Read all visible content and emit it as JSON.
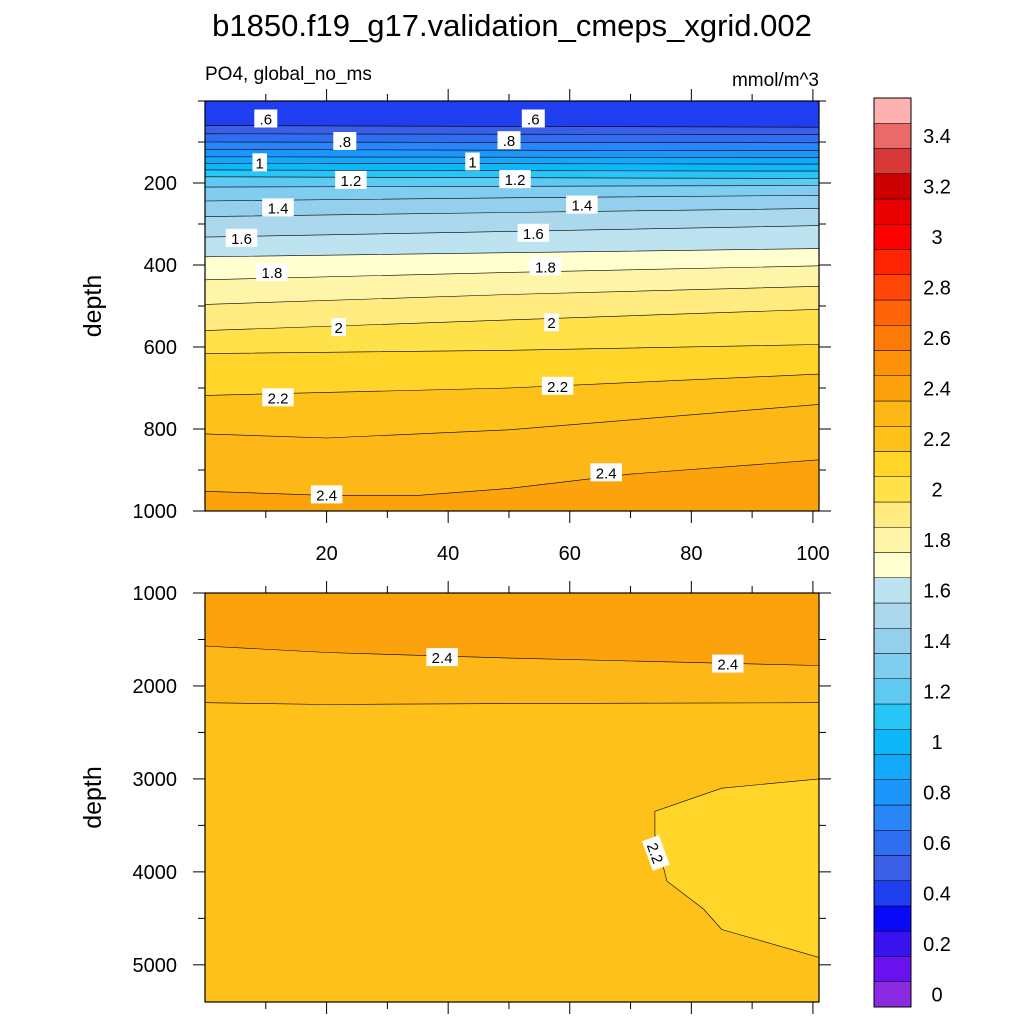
{
  "title": "b1850.f19_g17.validation_cmeps_xgrid.002",
  "subtitle_left": "PO4, global_no_ms",
  "subtitle_right": "mmol/m^3",
  "colorbar": {
    "levels": [
      0,
      0.1,
      0.2,
      0.3,
      0.4,
      0.5,
      0.6,
      0.7,
      0.8,
      0.9,
      1.0,
      1.1,
      1.2,
      1.3,
      1.4,
      1.5,
      1.6,
      1.7,
      1.8,
      1.9,
      2.0,
      2.1,
      2.2,
      2.3,
      2.4,
      2.5,
      2.6,
      2.7,
      2.8,
      2.9,
      3.0,
      3.1,
      3.2,
      3.3,
      3.4,
      3.5
    ],
    "labels": [
      "0",
      "0.2",
      "0.4",
      "0.6",
      "0.8",
      "1",
      "1.2",
      "1.4",
      "1.6",
      "1.8",
      "2",
      "2.2",
      "2.4",
      "2.6",
      "2.8",
      "3",
      "3.2",
      "3.4"
    ],
    "colors": [
      "#8a2be2",
      "#6a12ee",
      "#3a12f0",
      "#0a08f8",
      "#1e3ef0",
      "#3a5ee6",
      "#2f6ef0",
      "#2a86f8",
      "#1d96fb",
      "#14a8fb",
      "#0eb8f8",
      "#28c6f6",
      "#5ecaf2",
      "#80cdf0",
      "#94d0ee",
      "#acd8ee",
      "#bde3f0",
      "#ffffd0",
      "#fff5a8",
      "#ffeb80",
      "#ffe14a",
      "#ffd52a",
      "#fec11a",
      "#fdb716",
      "#fca20c",
      "#fd920a",
      "#fd7a08",
      "#ff6408",
      "#ff4606",
      "#ff2404",
      "#ff0000",
      "#e80000",
      "#cc0000",
      "#d83838",
      "#ea6a6a",
      "#ffb0b0"
    ]
  },
  "chart_data": [
    {
      "type": "contour",
      "panel": "top",
      "xlabel": "",
      "ylabel": "depth",
      "xlim": [
        0,
        101
      ],
      "ylim": [
        1000,
        0
      ],
      "xticks": [
        20,
        40,
        60,
        80,
        100
      ],
      "yticks": [
        200,
        400,
        600,
        800,
        1000
      ],
      "contour_levels": [
        0.6,
        0.8,
        1.0,
        1.2,
        1.4,
        1.6,
        1.8,
        2.0,
        2.2,
        2.4
      ],
      "contour_lines": [
        {
          "level": 0.5,
          "x": [
            0,
            50,
            101
          ],
          "y": [
            60,
            62,
            64
          ]
        },
        {
          "level": 0.6,
          "x": [
            0,
            50,
            101
          ],
          "y": [
            80,
            81,
            82
          ]
        },
        {
          "level": 0.7,
          "x": [
            0,
            50,
            101
          ],
          "y": [
            100,
            101,
            102
          ]
        },
        {
          "level": 0.8,
          "x": [
            0,
            50,
            101
          ],
          "y": [
            118,
            120,
            121
          ]
        },
        {
          "level": 0.9,
          "x": [
            0,
            50,
            101
          ],
          "y": [
            136,
            137,
            138
          ]
        },
        {
          "level": 1.0,
          "x": [
            0,
            50,
            101
          ],
          "y": [
            152,
            153,
            154
          ]
        },
        {
          "level": 1.1,
          "x": [
            0,
            50,
            101
          ],
          "y": [
            168,
            170,
            171
          ]
        },
        {
          "level": 1.2,
          "x": [
            0,
            50,
            101
          ],
          "y": [
            185,
            187,
            189
          ]
        },
        {
          "level": 1.3,
          "x": [
            0,
            50,
            101
          ],
          "y": [
            210,
            208,
            206
          ]
        },
        {
          "level": 1.4,
          "x": [
            0,
            50,
            101
          ],
          "y": [
            244,
            236,
            230
          ]
        },
        {
          "level": 1.5,
          "x": [
            0,
            50,
            101
          ],
          "y": [
            282,
            272,
            262
          ]
        },
        {
          "level": 1.6,
          "x": [
            0,
            50,
            101
          ],
          "y": [
            332,
            318,
            304
          ]
        },
        {
          "level": 1.7,
          "x": [
            0,
            50,
            101
          ],
          "y": [
            380,
            370,
            360
          ]
        },
        {
          "level": 1.8,
          "x": [
            0,
            50,
            101
          ],
          "y": [
            436,
            418,
            402
          ]
        },
        {
          "level": 1.9,
          "x": [
            0,
            50,
            101
          ],
          "y": [
            496,
            472,
            452
          ]
        },
        {
          "level": 2.0,
          "x": [
            0,
            50,
            101
          ],
          "y": [
            560,
            534,
            508
          ]
        },
        {
          "level": 2.1,
          "x": [
            0,
            50,
            101
          ],
          "y": [
            616,
            608,
            594
          ]
        },
        {
          "level": 2.2,
          "x": [
            0,
            50,
            101
          ],
          "y": [
            718,
            700,
            666
          ]
        },
        {
          "level": 2.3,
          "x": [
            0,
            20,
            50,
            101
          ],
          "y": [
            812,
            822,
            802,
            740
          ]
        },
        {
          "level": 2.4,
          "x": [
            0,
            20,
            35,
            50,
            70,
            101
          ],
          "y": [
            952,
            962,
            962,
            945,
            910,
            875
          ]
        }
      ],
      "inline_labels": [
        {
          "text": ".6",
          "x": 10,
          "y": 45
        },
        {
          "text": ".6",
          "x": 54,
          "y": 45
        },
        {
          "text": ".8",
          "x": 23,
          "y": 100
        },
        {
          "text": ".8",
          "x": 50,
          "y": 98
        },
        {
          "text": "1",
          "x": 9,
          "y": 152
        },
        {
          "text": "1",
          "x": 44,
          "y": 150
        },
        {
          "text": "1.2",
          "x": 24,
          "y": 195
        },
        {
          "text": "1.2",
          "x": 51,
          "y": 193
        },
        {
          "text": "1.4",
          "x": 12,
          "y": 262
        },
        {
          "text": "1.4",
          "x": 62,
          "y": 255
        },
        {
          "text": "1.6",
          "x": 6,
          "y": 336
        },
        {
          "text": "1.6",
          "x": 54,
          "y": 324
        },
        {
          "text": "1.8",
          "x": 11,
          "y": 420
        },
        {
          "text": "1.8",
          "x": 56,
          "y": 406
        },
        {
          "text": "2",
          "x": 22,
          "y": 554
        },
        {
          "text": "2",
          "x": 57,
          "y": 542
        },
        {
          "text": "2.2",
          "x": 12,
          "y": 725
        },
        {
          "text": "2.2",
          "x": 58,
          "y": 697
        },
        {
          "text": "2.4",
          "x": 20,
          "y": 962
        },
        {
          "text": "2.4",
          "x": 66,
          "y": 908
        }
      ]
    },
    {
      "type": "contour",
      "panel": "bottom",
      "xlabel": "",
      "ylabel": "depth",
      "xlim": [
        0,
        101
      ],
      "ylim": [
        5400,
        1000
      ],
      "yticks": [
        1000,
        2000,
        3000,
        4000,
        5000
      ],
      "contour_levels": [
        2.2,
        2.3,
        2.4
      ],
      "contour_lines": [
        {
          "level": 2.4,
          "x": [
            0,
            20,
            50,
            101
          ],
          "y": [
            1570,
            1640,
            1700,
            1780
          ]
        },
        {
          "level": 2.3,
          "x": [
            0,
            20,
            50,
            101
          ],
          "y": [
            2180,
            2200,
            2190,
            2180
          ]
        },
        {
          "level": 2.2,
          "x": [
            101,
            85,
            74,
            74,
            76,
            82,
            85,
            101
          ],
          "y": [
            3000,
            3100,
            3350,
            3600,
            4100,
            4400,
            4620,
            4920
          ]
        }
      ],
      "inline_labels": [
        {
          "text": "2.4",
          "x": 39,
          "y": 1700
        },
        {
          "text": "2.4",
          "x": 86,
          "y": 1770
        },
        {
          "text": "2.2",
          "x": 74,
          "y": 3800,
          "rotate": 70
        }
      ]
    }
  ]
}
